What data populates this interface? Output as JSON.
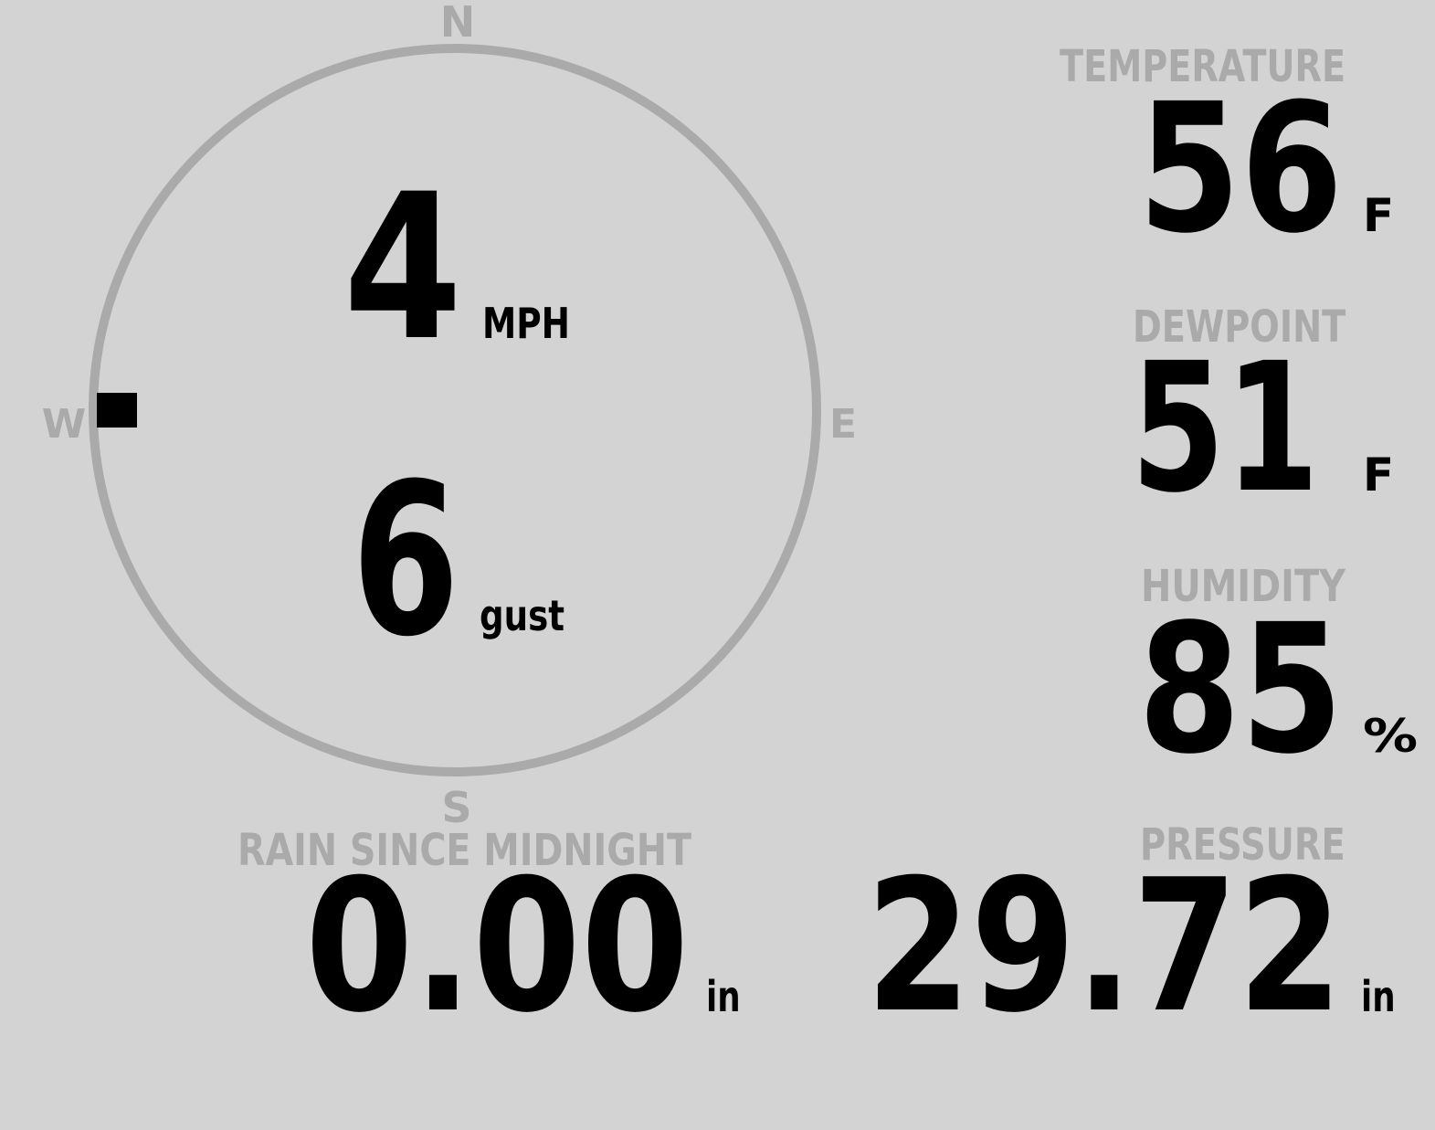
{
  "colors": {
    "background": "#d3d3d3",
    "label": "#aaaaaa",
    "value": "#000000",
    "dial": "#aaaaaa"
  },
  "wind": {
    "compass": {
      "north": "N",
      "east": "E",
      "south": "S",
      "west": "W"
    },
    "direction_degrees": 270,
    "speed": "4",
    "speed_unit": "MPH",
    "gust": "6",
    "gust_unit": "gust"
  },
  "temperature": {
    "label": "TEMPERATURE",
    "value": "56",
    "unit": "F"
  },
  "dewpoint": {
    "label": "DEWPOINT",
    "value": "51",
    "unit": "F"
  },
  "humidity": {
    "label": "HUMIDITY",
    "value": "85",
    "unit": "%"
  },
  "pressure": {
    "label": "PRESSURE",
    "value": "29.72",
    "unit": "in"
  },
  "rain": {
    "label": "RAIN SINCE MIDNIGHT",
    "value": "0.00",
    "unit": "in"
  }
}
